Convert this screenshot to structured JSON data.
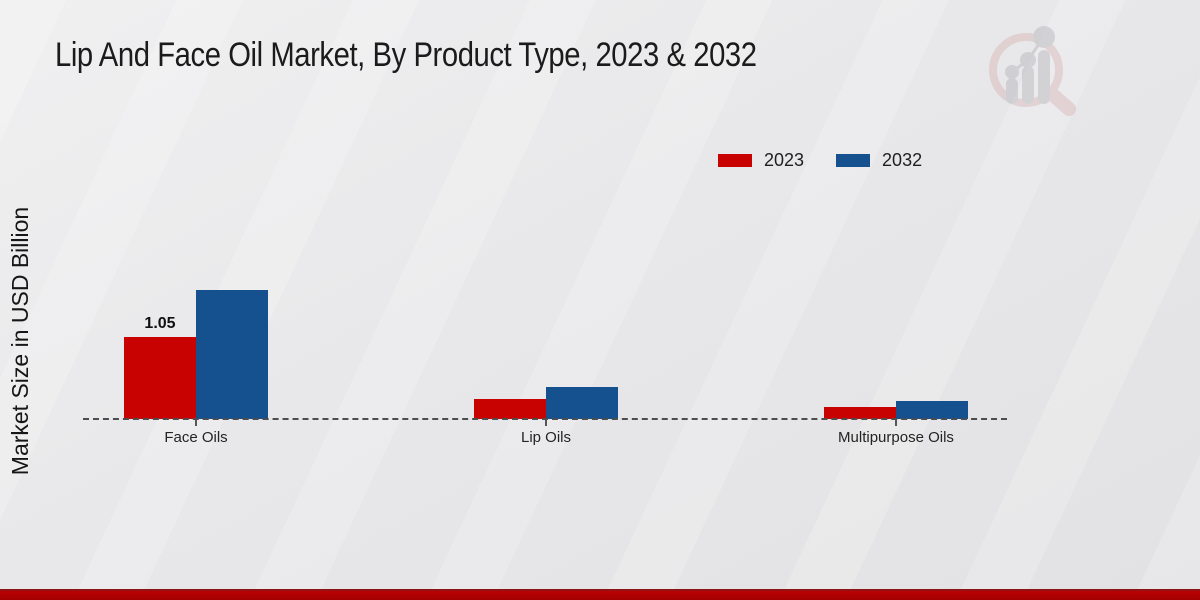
{
  "page": {
    "title": "Lip And Face Oil Market, By Product Type, 2023 & 2032"
  },
  "axes": {
    "y_label": "Market Size in USD Billion"
  },
  "legend": {
    "items": [
      {
        "label": "2023",
        "color": "#c80101"
      },
      {
        "label": "2032",
        "color": "#15508f"
      }
    ]
  },
  "watermark": {
    "name": "market-research-future-logo"
  },
  "footer": {
    "color": "#b00002"
  },
  "chart_data": {
    "type": "bar",
    "title": "Lip And Face Oil Market, By Product Type, 2023 & 2032",
    "xlabel": "",
    "ylabel": "Market Size in USD Billion",
    "unit": "USD Billion",
    "categories": [
      "Face Oils",
      "Lip Oils",
      "Multipurpose Oils"
    ],
    "series": [
      {
        "name": "2023",
        "color": "#c80101",
        "values": [
          1.05,
          0.26,
          0.15
        ]
      },
      {
        "name": "2032",
        "color": "#15508f",
        "values": [
          1.65,
          0.41,
          0.23
        ]
      }
    ],
    "data_labels": [
      {
        "category_index": 0,
        "series_index": 0,
        "text": "1.05"
      }
    ],
    "ylim": [
      0,
      1.8
    ],
    "y_ticks_visible": false,
    "grid": false,
    "baseline_style": "dashed",
    "legend_position": "top-right"
  }
}
